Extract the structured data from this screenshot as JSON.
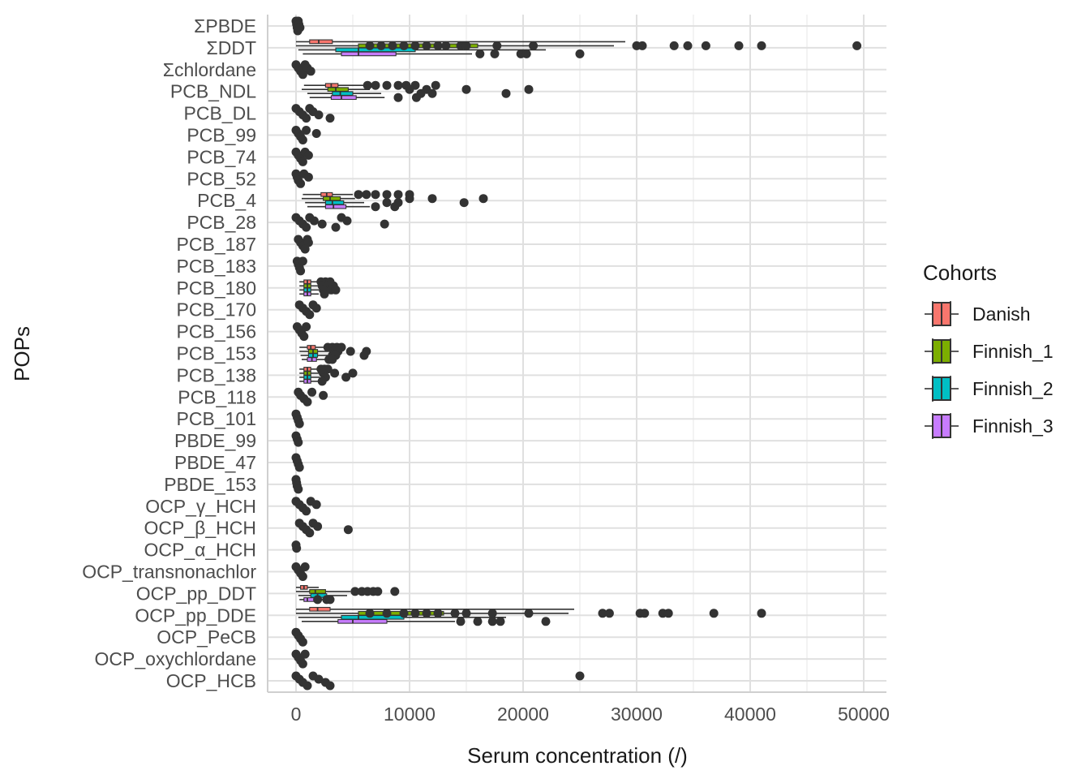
{
  "chart_data": {
    "type": "boxplot",
    "orientation": "horizontal",
    "title": "",
    "xlabel": "Serum concentration (/)",
    "ylabel": "POPs",
    "xlim": [
      -2500,
      52000
    ],
    "x_ticks": [
      0,
      10000,
      20000,
      30000,
      40000,
      50000
    ],
    "x_tick_labels": [
      "0",
      "10000",
      "20000",
      "30000",
      "40000",
      "50000"
    ],
    "grid": true,
    "legend": {
      "title": "Cohorts",
      "placement": "right"
    },
    "series": [
      {
        "name": "Danish",
        "color": "#F8766D"
      },
      {
        "name": "Finnish_1",
        "color": "#7CAE00"
      },
      {
        "name": "Finnish_2",
        "color": "#00BFC4"
      },
      {
        "name": "Finnish_3",
        "color": "#C77CFF"
      }
    ],
    "categories": [
      "ΣPBDE",
      "ΣDDT",
      "Σchlordane",
      "PCB_NDL",
      "PCB_DL",
      "PCB_99",
      "PCB_74",
      "PCB_52",
      "PCB_4",
      "PCB_28",
      "PCB_187",
      "PCB_183",
      "PCB_180",
      "PCB_170",
      "PCB_156",
      "PCB_153",
      "PCB_138",
      "PCB_118",
      "PCB_101",
      "PBDE_99",
      "PBDE_47",
      "PBDE_153",
      "OCP_γ_HCH",
      "OCP_β_HCH",
      "OCP_α_HCH",
      "OCP_transnonachlor",
      "OCP_pp_DDT",
      "OCP_pp_DDE",
      "OCP_PeCB",
      "OCP_oxychlordane",
      "OCP_HCB"
    ],
    "boxes": [
      {
        "category": "ΣDDT",
        "cohort": "Danish",
        "min": 0,
        "q1": 1200,
        "median": 2000,
        "q3": 3200,
        "max": 29000,
        "outliers": []
      },
      {
        "category": "ΣDDT",
        "cohort": "Finnish_1",
        "min": 0,
        "q1": 5500,
        "median": 8500,
        "q3": 16000,
        "max": 28000,
        "outliers": [
          6500,
          7500,
          8500,
          9500,
          10500,
          11500,
          12500,
          13200,
          14500,
          15000,
          17700,
          20900,
          30000,
          30500,
          33300,
          34500,
          36100,
          39000,
          41000,
          49400
        ]
      },
      {
        "category": "ΣDDT",
        "cohort": "Finnish_2",
        "min": 200,
        "q1": 3500,
        "median": 5500,
        "q3": 10500,
        "max": 22000,
        "outliers": []
      },
      {
        "category": "ΣDDT",
        "cohort": "Finnish_3",
        "min": 600,
        "q1": 4000,
        "median": 5500,
        "q3": 8800,
        "max": 15500,
        "outliers": [
          16200,
          17500,
          19800,
          20300,
          25000
        ]
      },
      {
        "category": "PCB_NDL",
        "cohort": "Danish",
        "min": 700,
        "q1": 2600,
        "median": 3100,
        "q3": 3700,
        "max": 6000,
        "outliers": [
          6300,
          7000,
          8000,
          9000,
          9700,
          10500,
          12300
        ]
      },
      {
        "category": "PCB_NDL",
        "cohort": "Finnish_1",
        "min": 500,
        "q1": 2800,
        "median": 3500,
        "q3": 4600,
        "max": 6500,
        "outliers": [
          10000,
          11500,
          15000,
          20500
        ]
      },
      {
        "category": "PCB_NDL",
        "cohort": "Finnish_2",
        "min": 1000,
        "q1": 3200,
        "median": 3900,
        "q3": 5000,
        "max": 7500,
        "outliers": [
          11000,
          12000,
          18500
        ]
      },
      {
        "category": "PCB_NDL",
        "cohort": "Finnish_3",
        "min": 1200,
        "q1": 3100,
        "median": 4000,
        "q3": 5300,
        "max": 7800,
        "outliers": [
          9000,
          10600
        ]
      },
      {
        "category": "PCB_4",
        "cohort": "Danish",
        "min": 600,
        "q1": 2200,
        "median": 2700,
        "q3": 3200,
        "max": 5000,
        "outliers": [
          5500,
          6200,
          7000,
          8000,
          9000,
          10000
        ]
      },
      {
        "category": "PCB_4",
        "cohort": "Finnish_1",
        "min": 500,
        "q1": 2400,
        "median": 3000,
        "q3": 3900,
        "max": 5200,
        "outliers": [
          10000,
          12000,
          16500
        ]
      },
      {
        "category": "PCB_4",
        "cohort": "Finnish_2",
        "min": 800,
        "q1": 2600,
        "median": 3200,
        "q3": 4200,
        "max": 6000,
        "outliers": [
          8000,
          9000,
          14800
        ]
      },
      {
        "category": "PCB_4",
        "cohort": "Finnish_3",
        "min": 1000,
        "q1": 2600,
        "median": 3300,
        "q3": 4400,
        "max": 6500,
        "outliers": [
          7000,
          8700
        ]
      },
      {
        "category": "OCP_pp_DDE",
        "cohort": "Danish",
        "min": 0,
        "q1": 1200,
        "median": 1900,
        "q3": 3000,
        "max": 24500,
        "outliers": []
      },
      {
        "category": "OCP_pp_DDE",
        "cohort": "Finnish_1",
        "min": 0,
        "q1": 5500,
        "median": 8000,
        "q3": 13000,
        "max": 24000,
        "outliers": [
          6500,
          8000,
          9500,
          10500,
          11500,
          12500,
          14000,
          15000,
          17300,
          20500,
          27000,
          27600,
          30300,
          30700,
          32300,
          32800,
          36800,
          41000
        ]
      },
      {
        "category": "OCP_pp_DDE",
        "cohort": "Finnish_2",
        "min": 200,
        "q1": 4000,
        "median": 5500,
        "q3": 9500,
        "max": 18500,
        "outliers": []
      },
      {
        "category": "OCP_pp_DDE",
        "cohort": "Finnish_3",
        "min": 500,
        "q1": 3700,
        "median": 5000,
        "q3": 8000,
        "max": 14000,
        "outliers": [
          14500,
          16000,
          17300,
          18000,
          22000
        ]
      },
      {
        "category": "OCP_pp_DDT",
        "cohort": "Danish",
        "min": 0,
        "q1": 400,
        "median": 700,
        "q3": 1000,
        "max": 2000,
        "outliers": []
      },
      {
        "category": "OCP_pp_DDT",
        "cohort": "Finnish_1",
        "min": 0,
        "q1": 1200,
        "median": 1700,
        "q3": 2600,
        "max": 4800,
        "outliers": [
          5200,
          5800,
          6300,
          6800,
          7200,
          8700
        ]
      },
      {
        "category": "OCP_pp_DDT",
        "cohort": "Finnish_2",
        "min": 200,
        "q1": 1300,
        "median": 1900,
        "q3": 2700,
        "max": 4500,
        "outliers": []
      },
      {
        "category": "OCP_pp_DDT",
        "cohort": "Finnish_3",
        "min": 300,
        "q1": 700,
        "median": 1000,
        "q3": 1600,
        "max": 2600,
        "outliers": [
          1900,
          2700,
          3000
        ]
      },
      {
        "category": "PCB_153",
        "cohort": "Danish",
        "min": 300,
        "q1": 1000,
        "median": 1300,
        "q3": 1700,
        "max": 2600,
        "outliers": [
          2800,
          3200,
          3600,
          4000
        ]
      },
      {
        "category": "PCB_153",
        "cohort": "Finnish_1",
        "min": 300,
        "q1": 1100,
        "median": 1500,
        "q3": 1900,
        "max": 2900,
        "outliers": [
          3300,
          3700,
          4800,
          6200
        ]
      },
      {
        "category": "PCB_153",
        "cohort": "Finnish_2",
        "min": 400,
        "q1": 1100,
        "median": 1500,
        "q3": 1900,
        "max": 2900,
        "outliers": [
          3200,
          3500,
          6000
        ]
      },
      {
        "category": "PCB_153",
        "cohort": "Finnish_3",
        "min": 500,
        "q1": 1000,
        "median": 1400,
        "q3": 1800,
        "max": 2700,
        "outliers": [
          2900,
          3200
        ]
      },
      {
        "category": "PCB_138",
        "cohort": "Danish",
        "min": 300,
        "q1": 700,
        "median": 1000,
        "q3": 1300,
        "max": 2000,
        "outliers": [
          2200,
          2500,
          2800
        ]
      },
      {
        "category": "PCB_138",
        "cohort": "Finnish_1",
        "min": 300,
        "q1": 700,
        "median": 1000,
        "q3": 1300,
        "max": 2100,
        "outliers": [
          2400,
          3400,
          5000
        ]
      },
      {
        "category": "PCB_138",
        "cohort": "Finnish_2",
        "min": 300,
        "q1": 700,
        "median": 1000,
        "q3": 1300,
        "max": 2100,
        "outliers": [
          2600,
          4400
        ]
      },
      {
        "category": "PCB_138",
        "cohort": "Finnish_3",
        "min": 300,
        "q1": 700,
        "median": 1000,
        "q3": 1300,
        "max": 2000,
        "outliers": [
          2300
        ]
      },
      {
        "category": "PCB_180",
        "cohort": "Danish",
        "min": 300,
        "q1": 700,
        "median": 1000,
        "q3": 1300,
        "max": 2000,
        "outliers": [
          2200,
          2600,
          3000
        ]
      },
      {
        "category": "PCB_180",
        "cohort": "Finnish_1",
        "min": 300,
        "q1": 700,
        "median": 1000,
        "q3": 1300,
        "max": 2000,
        "outliers": [
          2300,
          2800,
          3300
        ]
      },
      {
        "category": "PCB_180",
        "cohort": "Finnish_2",
        "min": 300,
        "q1": 700,
        "median": 1000,
        "q3": 1300,
        "max": 2000,
        "outliers": [
          2400,
          3100,
          3500
        ]
      },
      {
        "category": "PCB_180",
        "cohort": "Finnish_3",
        "min": 300,
        "q1": 700,
        "median": 1000,
        "q3": 1300,
        "max": 2000,
        "outliers": [
          2500
        ]
      }
    ],
    "point_clusters": [
      {
        "category": "ΣPBDE",
        "values": [
          0,
          50,
          100,
          150,
          200,
          250,
          350
        ]
      },
      {
        "category": "Σchlordane",
        "values": [
          0,
          200,
          400,
          600,
          800,
          1000,
          1300
        ]
      },
      {
        "category": "PCB_DL",
        "values": [
          0,
          300,
          600,
          900,
          1200,
          1500,
          2000,
          3000
        ]
      },
      {
        "category": "PCB_99",
        "values": [
          0,
          200,
          400,
          600,
          900,
          1800
        ]
      },
      {
        "category": "PCB_74",
        "values": [
          0,
          200,
          400,
          600,
          800,
          1100
        ]
      },
      {
        "category": "PCB_52",
        "values": [
          0,
          100,
          200,
          400,
          700,
          1100
        ]
      },
      {
        "category": "PCB_28",
        "values": [
          0,
          300,
          600,
          900,
          1200,
          1600,
          2300,
          3500,
          4000,
          4500,
          7800
        ]
      },
      {
        "category": "PCB_187",
        "values": [
          200,
          400,
          600,
          800,
          1000,
          1100
        ]
      },
      {
        "category": "PCB_183",
        "values": [
          100,
          200,
          300,
          400,
          600
        ]
      },
      {
        "category": "PCB_170",
        "values": [
          300,
          600,
          900,
          1200,
          1500,
          1800
        ]
      },
      {
        "category": "PCB_156",
        "values": [
          100,
          300,
          500,
          700,
          900
        ]
      },
      {
        "category": "PCB_118",
        "values": [
          200,
          400,
          700,
          1000,
          1400,
          2400
        ]
      },
      {
        "category": "PCB_101",
        "values": [
          0,
          100,
          200,
          300
        ]
      },
      {
        "category": "PBDE_99",
        "values": [
          0,
          100,
          200
        ]
      },
      {
        "category": "PBDE_47",
        "values": [
          0,
          100,
          200,
          300
        ]
      },
      {
        "category": "PBDE_153",
        "values": [
          0,
          50,
          100,
          200
        ]
      },
      {
        "category": "OCP_γ_HCH",
        "values": [
          0,
          300,
          600,
          900,
          1300,
          1800
        ]
      },
      {
        "category": "OCP_β_HCH",
        "values": [
          300,
          600,
          900,
          1200,
          1500,
          1900,
          4600
        ]
      },
      {
        "category": "OCP_α_HCH",
        "values": [
          0,
          50
        ]
      },
      {
        "category": "OCP_transnonachlor",
        "values": [
          0,
          200,
          400,
          600,
          800
        ]
      },
      {
        "category": "OCP_PeCB",
        "values": [
          0,
          200,
          400,
          600
        ]
      },
      {
        "category": "OCP_oxychlordane",
        "values": [
          0,
          200,
          400,
          600,
          800
        ]
      },
      {
        "category": "OCP_HCB",
        "values": [
          0,
          300,
          600,
          1000,
          1500,
          2000,
          2600,
          3000,
          25000
        ]
      }
    ]
  }
}
